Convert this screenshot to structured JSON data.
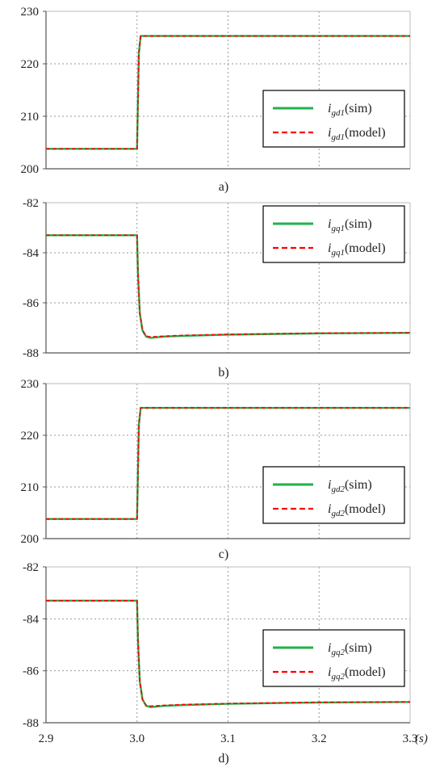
{
  "chart_data": [
    {
      "type": "line",
      "panel_label": "a)",
      "xlim": [
        2.9,
        3.3
      ],
      "ylim": [
        200,
        230
      ],
      "yticks": [
        200,
        210,
        220,
        230
      ],
      "grid": true,
      "legend_position": "right",
      "series": [
        {
          "name": "i_gd1(sim)",
          "legend_var": "i",
          "legend_sub": "gd1",
          "legend_suffix": "(sim)",
          "color": "#22b14c",
          "x": [
            2.9,
            2.999,
            3.0,
            3.002,
            3.004,
            3.3
          ],
          "y": [
            203.8,
            203.8,
            203.8,
            222.0,
            225.3,
            225.3
          ]
        },
        {
          "name": "i_gd1(model)",
          "legend_var": "i",
          "legend_sub": "gd1",
          "legend_suffix": "(model)",
          "color": "#ff0000",
          "dashed": true,
          "x": [
            2.9,
            2.999,
            3.0,
            3.002,
            3.004,
            3.3
          ],
          "y": [
            203.8,
            203.8,
            203.8,
            222.0,
            225.3,
            225.3
          ]
        }
      ]
    },
    {
      "type": "line",
      "panel_label": "b)",
      "xlim": [
        2.9,
        3.3
      ],
      "ylim": [
        -88,
        -82
      ],
      "yticks": [
        -88,
        -86,
        -84,
        -82
      ],
      "grid": true,
      "legend_position": "top-right",
      "series": [
        {
          "name": "i_gq1(sim)",
          "legend_var": "i",
          "legend_sub": "gq1",
          "legend_suffix": "(sim)",
          "color": "#22b14c",
          "x": [
            2.9,
            2.999,
            3.0,
            3.001,
            3.003,
            3.006,
            3.01,
            3.015,
            3.03,
            3.05,
            3.1,
            3.2,
            3.3
          ],
          "y": [
            -83.3,
            -83.3,
            -83.3,
            -84.8,
            -86.4,
            -87.1,
            -87.35,
            -87.4,
            -87.35,
            -87.32,
            -87.27,
            -87.22,
            -87.2
          ]
        },
        {
          "name": "i_gq1(model)",
          "legend_var": "i",
          "legend_sub": "gq1",
          "legend_suffix": "(model)",
          "color": "#ff0000",
          "dashed": true,
          "x": [
            2.9,
            2.999,
            3.0,
            3.001,
            3.003,
            3.006,
            3.01,
            3.015,
            3.03,
            3.05,
            3.1,
            3.2,
            3.3
          ],
          "y": [
            -83.3,
            -83.3,
            -83.3,
            -84.8,
            -86.4,
            -87.1,
            -87.33,
            -87.36,
            -87.33,
            -87.3,
            -87.26,
            -87.21,
            -87.2
          ]
        }
      ]
    },
    {
      "type": "line",
      "panel_label": "c)",
      "xlim": [
        2.9,
        3.3
      ],
      "ylim": [
        200,
        230
      ],
      "yticks": [
        200,
        210,
        220,
        230
      ],
      "grid": true,
      "legend_position": "bottom-right",
      "series": [
        {
          "name": "i_gd2(sim)",
          "legend_var": "i",
          "legend_sub": "gd2",
          "legend_suffix": "(sim)",
          "color": "#22b14c",
          "x": [
            2.9,
            2.999,
            3.0,
            3.002,
            3.004,
            3.3
          ],
          "y": [
            203.8,
            203.8,
            203.8,
            222.0,
            225.3,
            225.3
          ]
        },
        {
          "name": "i_gd2(model)",
          "legend_var": "i",
          "legend_sub": "gd2",
          "legend_suffix": "(model)",
          "color": "#ff0000",
          "dashed": true,
          "x": [
            2.9,
            2.999,
            3.0,
            3.002,
            3.004,
            3.3
          ],
          "y": [
            203.8,
            203.8,
            203.8,
            222.0,
            225.3,
            225.3
          ]
        }
      ]
    },
    {
      "type": "line",
      "panel_label": "d)",
      "xlim": [
        2.9,
        3.3
      ],
      "ylim": [
        -88,
        -82
      ],
      "yticks": [
        -88,
        -86,
        -84,
        -82
      ],
      "xticks": [
        "2.9",
        "3.0",
        "3.1",
        "3.2",
        "3.3"
      ],
      "xunit": "(s)",
      "grid": true,
      "legend_position": "right",
      "series": [
        {
          "name": "i_gq2(sim)",
          "legend_var": "i",
          "legend_sub": "gq2",
          "legend_suffix": "(sim)",
          "color": "#22b14c",
          "x": [
            2.9,
            2.999,
            3.0,
            3.001,
            3.003,
            3.006,
            3.01,
            3.015,
            3.03,
            3.05,
            3.1,
            3.2,
            3.3
          ],
          "y": [
            -83.3,
            -83.3,
            -83.3,
            -84.8,
            -86.4,
            -87.1,
            -87.35,
            -87.4,
            -87.35,
            -87.32,
            -87.27,
            -87.22,
            -87.2
          ]
        },
        {
          "name": "i_gq2(model)",
          "legend_var": "i",
          "legend_sub": "gq2",
          "legend_suffix": "(model)",
          "color": "#ff0000",
          "dashed": true,
          "x": [
            2.9,
            2.999,
            3.0,
            3.001,
            3.003,
            3.006,
            3.01,
            3.015,
            3.03,
            3.05,
            3.1,
            3.2,
            3.3
          ],
          "y": [
            -83.3,
            -83.3,
            -83.3,
            -84.8,
            -86.4,
            -87.1,
            -87.33,
            -87.36,
            -87.33,
            -87.3,
            -87.26,
            -87.21,
            -87.2
          ]
        }
      ]
    }
  ]
}
